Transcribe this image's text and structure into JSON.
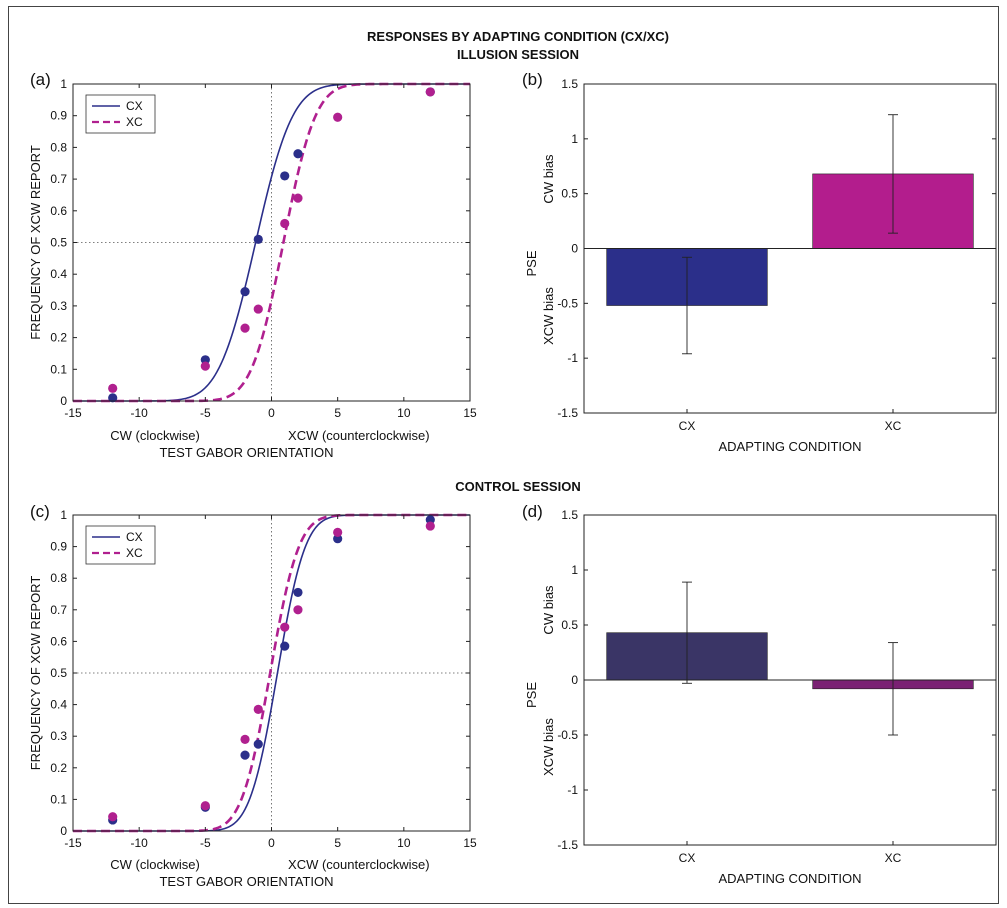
{
  "figure": {
    "title": "RESPONSES BY ADAPTING CONDITION (CX/XC)",
    "session_top": "ILLUSION SESSION",
    "session_bottom": "CONTROL SESSION"
  },
  "colors": {
    "cx": "#2b2f8a",
    "xc": "#b0208f",
    "cx_bar_illusion": "#2b2f8a",
    "xc_bar_illusion": "#b31d8d",
    "cx_bar_control": "#3a3566",
    "xc_bar_control": "#7a2173"
  },
  "chart_data": [
    {
      "panel": "(a)",
      "type": "scatter",
      "xlabel": "TEST GABOR ORIENTATION",
      "xlabel_left": "CW (clockwise)",
      "xlabel_right": "XCW (counterclockwise)",
      "ylabel": "FREQUENCY OF XCW REPORT",
      "xlim": [
        -15,
        15
      ],
      "ylim": [
        0,
        1
      ],
      "xticks": [
        -15,
        -10,
        -5,
        0,
        5,
        10,
        15
      ],
      "yticks": [
        0,
        0.1,
        0.2,
        0.3,
        0.4,
        0.5,
        0.6,
        0.7,
        0.8,
        0.9,
        1
      ],
      "ref_lines": {
        "x": 0,
        "y": 0.5
      },
      "legend": {
        "position": "top-left",
        "entries": [
          "CX",
          "XC"
        ]
      },
      "series": [
        {
          "name": "CX",
          "style": "solid",
          "fit": {
            "mu": -1.2,
            "sigma": 2.2
          },
          "points": [
            [
              -12,
              0.01
            ],
            [
              -5,
              0.13
            ],
            [
              -2,
              0.345
            ],
            [
              -1,
              0.51
            ],
            [
              1,
              0.71
            ],
            [
              2,
              0.78
            ],
            [
              12,
              0.975
            ]
          ]
        },
        {
          "name": "XC",
          "style": "dashed",
          "fit": {
            "mu": 0.9,
            "sigma": 1.9
          },
          "points": [
            [
              -12,
              0.04
            ],
            [
              -5,
              0.11
            ],
            [
              -2,
              0.23
            ],
            [
              -1,
              0.29
            ],
            [
              1,
              0.56
            ],
            [
              2,
              0.64
            ],
            [
              5,
              0.895
            ],
            [
              12,
              0.975
            ]
          ]
        }
      ]
    },
    {
      "panel": "(b)",
      "type": "bar",
      "categories": [
        "CX",
        "XC"
      ],
      "values": [
        -0.52,
        0.68
      ],
      "errors": [
        0.44,
        0.54
      ],
      "xlabel": "ADAPTING CONDITION",
      "ylabel": "PSE",
      "ylabel_top": "CW bias",
      "ylabel_bottom": "XCW bias",
      "ylim": [
        -1.5,
        1.5
      ],
      "yticks": [
        -1.5,
        -1,
        -0.5,
        0,
        0.5,
        1,
        1.5
      ],
      "ytick_labels": [
        "-1.5",
        "-1",
        "-0.5",
        "0",
        "0.5",
        "1",
        "1.5"
      ]
    },
    {
      "panel": "(c)",
      "type": "scatter",
      "xlabel": "TEST GABOR ORIENTATION",
      "xlabel_left": "CW (clockwise)",
      "xlabel_right": "XCW (counterclockwise)",
      "ylabel": "FREQUENCY OF XCW REPORT",
      "xlim": [
        -15,
        15
      ],
      "ylim": [
        0,
        1
      ],
      "xticks": [
        -15,
        -10,
        -5,
        0,
        5,
        10,
        15
      ],
      "yticks": [
        0,
        0.1,
        0.2,
        0.3,
        0.4,
        0.5,
        0.6,
        0.7,
        0.8,
        0.9,
        1
      ],
      "ref_lines": {
        "x": 0,
        "y": 0.5
      },
      "legend": {
        "position": "top-left",
        "entries": [
          "CX",
          "XC"
        ]
      },
      "series": [
        {
          "name": "CX",
          "style": "solid",
          "fit": {
            "mu": 0.45,
            "sigma": 1.65
          },
          "points": [
            [
              -12,
              0.035
            ],
            [
              -5,
              0.075
            ],
            [
              -2,
              0.24
            ],
            [
              -1,
              0.275
            ],
            [
              1,
              0.585
            ],
            [
              2,
              0.755
            ],
            [
              5,
              0.925
            ],
            [
              12,
              0.985
            ]
          ]
        },
        {
          "name": "XC",
          "style": "dashed",
          "fit": {
            "mu": -0.1,
            "sigma": 1.7
          },
          "points": [
            [
              -12,
              0.045
            ],
            [
              -5,
              0.08
            ],
            [
              -2,
              0.29
            ],
            [
              -1,
              0.385
            ],
            [
              1,
              0.645
            ],
            [
              2,
              0.7
            ],
            [
              5,
              0.945
            ],
            [
              12,
              0.965
            ]
          ]
        }
      ]
    },
    {
      "panel": "(d)",
      "type": "bar",
      "categories": [
        "CX",
        "XC"
      ],
      "values": [
        0.43,
        -0.08
      ],
      "errors": [
        0.46,
        0.42
      ],
      "xlabel": "ADAPTING CONDITION",
      "ylabel": "PSE",
      "ylabel_top": "CW bias",
      "ylabel_bottom": "XCW bias",
      "ylim": [
        -1.5,
        1.5
      ],
      "yticks": [
        -1.5,
        -1,
        -0.5,
        0,
        0.5,
        1,
        1.5
      ],
      "ytick_labels": [
        "-1.5",
        "-1",
        "-0.5",
        "0",
        "0.5",
        "1",
        "1.5"
      ]
    }
  ]
}
